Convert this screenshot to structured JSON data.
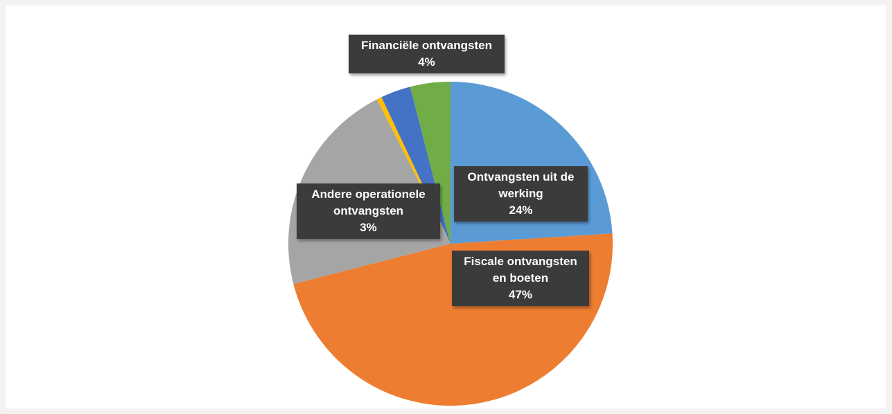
{
  "chart_data": {
    "type": "pie",
    "categories": [
      "Ontvangsten uit de werking",
      "Fiscale ontvangsten en boeten",
      null,
      null,
      "Andere operationele ontvangsten",
      "Financiële ontvangsten"
    ],
    "values": [
      24,
      47,
      21.5,
      0.5,
      3,
      4
    ],
    "value_labels": [
      "24%",
      "47%",
      null,
      null,
      "3%",
      "4%"
    ],
    "colors": [
      "#5b9bd5",
      "#ed7d31",
      "#a5a5a5",
      "#ffc000",
      "#4472c4",
      "#70ad47"
    ]
  }
}
